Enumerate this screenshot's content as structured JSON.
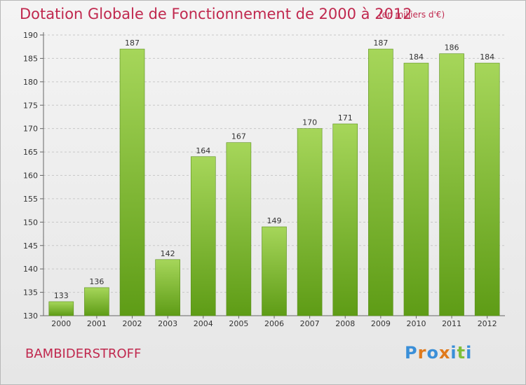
{
  "header": {
    "title": "Dotation Globale de Fonctionnement de 2000 à 2012",
    "subtitle": "(en milliers d'€)"
  },
  "footer": {
    "commune": "BAMBIDERSTROFF",
    "logo": [
      "P",
      "r",
      "o",
      "x",
      "i",
      "t",
      "i"
    ]
  },
  "colors": {
    "title": "#c0284e",
    "bar_top": "#a6d65a",
    "bar_bottom": "#5e9c16",
    "grid": "#c8c8c8",
    "logo": [
      "#3a8fd8",
      "#e07a1c",
      "#3a8fd8",
      "#e07a1c",
      "#3a8fd8",
      "#7fbf3a",
      "#3a8fd8"
    ]
  },
  "chart_data": {
    "type": "bar",
    "categories": [
      "2000",
      "2001",
      "2002",
      "2003",
      "2004",
      "2005",
      "2006",
      "2007",
      "2008",
      "2009",
      "2010",
      "2011",
      "2012"
    ],
    "values": [
      133,
      136,
      187,
      142,
      164,
      167,
      149,
      170,
      171,
      187,
      184,
      186,
      184
    ],
    "ylim": [
      130,
      190
    ],
    "yticks": [
      130,
      135,
      140,
      145,
      150,
      155,
      160,
      165,
      170,
      175,
      180,
      185,
      190
    ],
    "grid": true,
    "data_labels": true
  }
}
